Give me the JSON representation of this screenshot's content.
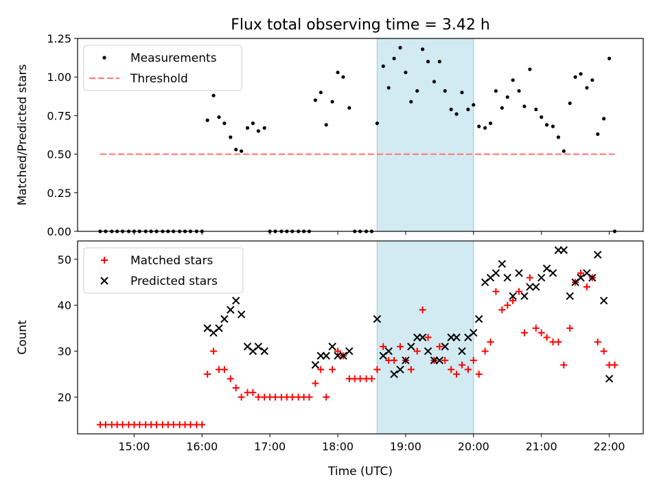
{
  "title": "Flux total observing time = 3.42 h",
  "chart_data": [
    {
      "type": "scatter",
      "title": "Flux total observing time = 3.42 h",
      "ylabel": "Matched/Predicted stars",
      "xlim": [
        14.1667,
        22.5
      ],
      "ylim": [
        0,
        1.25
      ],
      "yticks": [
        "0.00",
        "0.25",
        "0.50",
        "0.75",
        "1.00",
        "1.25"
      ],
      "y_tick_values": [
        0,
        0.25,
        0.5,
        0.75,
        1.0,
        1.25
      ],
      "legend": {
        "placement": "upper-left",
        "entries": [
          "Measurements",
          "Threshold"
        ]
      },
      "shaded_span": {
        "from": 18.58,
        "to": 20.0,
        "color": "#add8e6"
      },
      "threshold": {
        "name": "Threshold",
        "value": 0.5,
        "x_range": [
          14.5,
          22.08
        ],
        "color": "#ff7f7f"
      },
      "series": [
        {
          "name": "Measurements",
          "marker": "dot",
          "color": "#000000",
          "x": [
            14.5,
            14.58,
            14.67,
            14.75,
            14.83,
            14.92,
            15.0,
            15.08,
            15.17,
            15.25,
            15.33,
            15.42,
            15.5,
            15.58,
            15.67,
            15.75,
            15.83,
            15.92,
            16.0,
            16.08,
            16.17,
            16.25,
            16.33,
            16.42,
            16.5,
            16.58,
            16.67,
            16.75,
            16.83,
            16.92,
            17.0,
            17.08,
            17.17,
            17.25,
            17.33,
            17.42,
            17.5,
            17.58,
            17.67,
            17.75,
            17.83,
            17.92,
            18.0,
            18.08,
            18.17,
            18.25,
            18.33,
            18.42,
            18.5,
            18.58,
            18.67,
            18.75,
            18.83,
            18.92,
            19.0,
            19.08,
            19.17,
            19.25,
            19.33,
            19.42,
            19.5,
            19.58,
            19.67,
            19.75,
            19.83,
            19.92,
            20.0,
            20.08,
            20.17,
            20.25,
            20.33,
            20.42,
            20.5,
            20.58,
            20.67,
            20.75,
            20.83,
            20.92,
            21.0,
            21.08,
            21.17,
            21.25,
            21.33,
            21.42,
            21.5,
            21.58,
            21.67,
            21.75,
            21.83,
            21.92,
            22.0,
            22.08
          ],
          "y": [
            0,
            0,
            0,
            0,
            0,
            0,
            0,
            0,
            0,
            0,
            0,
            0,
            0,
            0,
            0,
            0,
            0,
            0,
            0,
            0.72,
            0.88,
            0.74,
            0.7,
            0.61,
            0.53,
            0.52,
            0.67,
            0.7,
            0.65,
            0.67,
            0,
            0,
            0,
            0,
            0,
            0,
            0,
            0,
            0.85,
            0.9,
            0.69,
            0.84,
            1.03,
            1.0,
            0.8,
            0,
            0,
            0,
            0,
            0.7,
            1.07,
            0.93,
            1.12,
            1.19,
            1.03,
            0.84,
            0.91,
            1.18,
            1.1,
            0.97,
            1.1,
            0.91,
            0.79,
            0.76,
            0.9,
            0.79,
            0.82,
            0.68,
            0.67,
            0.7,
            0.91,
            0.8,
            0.87,
            0.98,
            0.91,
            0.81,
            1.05,
            0.79,
            0.74,
            0.69,
            0.68,
            0.61,
            0.52,
            0.83,
            1.0,
            1.02,
            0.93,
            0.98,
            0.63,
            0.73,
            1.12,
            0
          ]
        }
      ]
    },
    {
      "type": "scatter",
      "xlabel": "Time (UTC)",
      "ylabel": "Count",
      "xlim": [
        14.1667,
        22.5
      ],
      "ylim": [
        12,
        54
      ],
      "xticks": [
        "15:00",
        "16:00",
        "17:00",
        "18:00",
        "19:00",
        "20:00",
        "21:00",
        "22:00"
      ],
      "x_tick_values": [
        15,
        16,
        17,
        18,
        19,
        20,
        21,
        22
      ],
      "yticks": [
        "20",
        "30",
        "40",
        "50"
      ],
      "y_tick_values": [
        20,
        30,
        40,
        50
      ],
      "legend": {
        "placement": "upper-left",
        "entries": [
          "Matched stars",
          "Predicted stars"
        ]
      },
      "shaded_span": {
        "from": 18.58,
        "to": 20.0,
        "color": "#add8e6"
      },
      "series": [
        {
          "name": "Matched stars",
          "marker": "plus",
          "color": "#ff0000",
          "x": [
            14.5,
            14.58,
            14.67,
            14.75,
            14.83,
            14.92,
            15.0,
            15.08,
            15.17,
            15.25,
            15.33,
            15.42,
            15.5,
            15.58,
            15.67,
            15.75,
            15.83,
            15.92,
            16.0,
            16.08,
            16.17,
            16.25,
            16.33,
            16.42,
            16.5,
            16.58,
            16.67,
            16.75,
            16.83,
            16.92,
            17.0,
            17.08,
            17.17,
            17.25,
            17.33,
            17.42,
            17.5,
            17.58,
            17.67,
            17.75,
            17.83,
            17.92,
            18.0,
            18.08,
            18.17,
            18.25,
            18.33,
            18.42,
            18.5,
            18.58,
            18.67,
            18.75,
            18.83,
            18.92,
            19.0,
            19.08,
            19.17,
            19.25,
            19.33,
            19.42,
            19.5,
            19.58,
            19.67,
            19.75,
            19.83,
            19.92,
            20.0,
            20.08,
            20.17,
            20.25,
            20.33,
            20.42,
            20.5,
            20.58,
            20.67,
            20.75,
            20.83,
            20.92,
            21.0,
            21.08,
            21.17,
            21.25,
            21.33,
            21.42,
            21.5,
            21.58,
            21.67,
            21.75,
            21.83,
            21.92,
            22.0,
            22.08
          ],
          "y": [
            14,
            14,
            14,
            14,
            14,
            14,
            14,
            14,
            14,
            14,
            14,
            14,
            14,
            14,
            14,
            14,
            14,
            14,
            14,
            25,
            30,
            26,
            26,
            24,
            22,
            20,
            21,
            21,
            20,
            20,
            20,
            20,
            20,
            20,
            20,
            20,
            20,
            20,
            23,
            26,
            20,
            26,
            30,
            29,
            24,
            24,
            24,
            24,
            24,
            26,
            31,
            28,
            28,
            31,
            28,
            26,
            30,
            39,
            33,
            28,
            31,
            28,
            26,
            25,
            27,
            26,
            28,
            25,
            30,
            32,
            43,
            39,
            40,
            41,
            43,
            34,
            46,
            35,
            34,
            33,
            32,
            32,
            27,
            35,
            45,
            47,
            44,
            46,
            32,
            30,
            27,
            27
          ]
        },
        {
          "name": "Predicted stars",
          "marker": "x",
          "color": "#000000",
          "x": [
            16.08,
            16.17,
            16.25,
            16.33,
            16.42,
            16.5,
            16.58,
            16.67,
            16.75,
            16.83,
            16.92,
            17.67,
            17.75,
            17.83,
            17.92,
            18.0,
            18.08,
            18.17,
            18.58,
            18.67,
            18.75,
            18.83,
            18.92,
            19.0,
            19.08,
            19.17,
            19.25,
            19.33,
            19.42,
            19.5,
            19.58,
            19.67,
            19.75,
            19.83,
            19.92,
            20.0,
            20.08,
            20.17,
            20.25,
            20.33,
            20.42,
            20.5,
            20.58,
            20.67,
            20.75,
            20.83,
            20.92,
            21.0,
            21.08,
            21.17,
            21.25,
            21.33,
            21.42,
            21.5,
            21.58,
            21.67,
            21.75,
            21.83,
            21.92,
            22.0
          ],
          "y": [
            35,
            34,
            35,
            37,
            39,
            41,
            38,
            31,
            30,
            31,
            30,
            27,
            29,
            29,
            31,
            29,
            29,
            30,
            37,
            29,
            30,
            25,
            26,
            28,
            31,
            33,
            33,
            30,
            28,
            28,
            31,
            33,
            33,
            30,
            33,
            34,
            37,
            45,
            46,
            47,
            49,
            46,
            42,
            47,
            42,
            44,
            44,
            46,
            48,
            47,
            52,
            52,
            42,
            45,
            46,
            47,
            46,
            51,
            41,
            24
          ]
        }
      ]
    }
  ]
}
